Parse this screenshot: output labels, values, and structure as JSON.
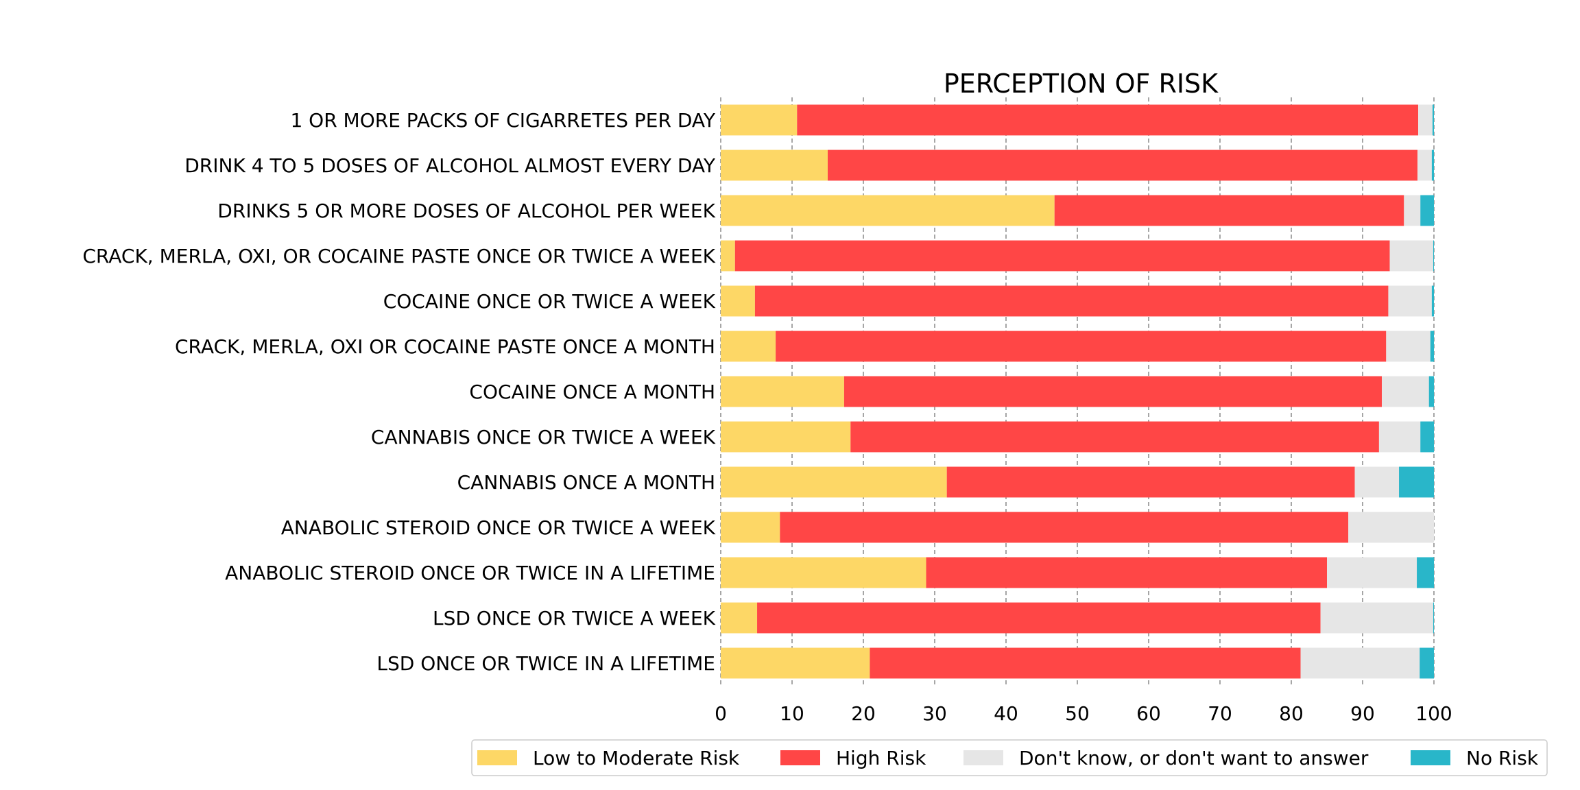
{
  "chart_data": {
    "type": "bar",
    "orientation": "horizontal",
    "stacked": true,
    "title": "PERCEPTION OF RISK",
    "xlabel": "",
    "ylabel": "",
    "xlim": [
      0,
      100
    ],
    "xticks": [
      0,
      10,
      20,
      30,
      40,
      50,
      60,
      70,
      80,
      90,
      100
    ],
    "grid": "vertical dashed",
    "legend_position": "bottom",
    "categories": [
      "1 OR MORE PACKS OF CIGARRETES PER DAY",
      "DRINK 4 TO 5 DOSES OF ALCOHOL ALMOST EVERY DAY",
      "DRINKS 5 OR MORE DOSES OF ALCOHOL PER WEEK",
      "CRACK, MERLA, OXI, OR COCAINE PASTE ONCE OR TWICE A WEEK",
      "COCAINE ONCE OR TWICE A WEEK",
      "CRACK, MERLA, OXI OR COCAINE PASTE ONCE A MONTH",
      "COCAINE ONCE A MONTH",
      "CANNABIS ONCE OR TWICE A WEEK",
      "CANNABIS ONCE A MONTH",
      "ANABOLIC STEROID ONCE OR TWICE A WEEK",
      "ANABOLIC STEROID ONCE OR TWICE IN A LIFETIME",
      "LSD ONCE OR TWICE A WEEK",
      "LSD ONCE OR TWICE IN A LIFETIME"
    ],
    "series": [
      {
        "name": "Low to Moderate Risk",
        "color": "#FDD766",
        "values": [
          10.7,
          15.0,
          46.8,
          2.0,
          4.8,
          7.7,
          17.3,
          18.2,
          31.7,
          8.3,
          28.8,
          5.1,
          20.9
        ]
      },
      {
        "name": "High Risk",
        "color": "#FF4646",
        "values": [
          87.1,
          82.7,
          49.0,
          91.8,
          88.8,
          85.6,
          75.4,
          74.1,
          57.2,
          79.7,
          56.2,
          79.0,
          60.4
        ]
      },
      {
        "name": "Don't know, or don't want to answer",
        "color": "#E6E6E6",
        "values": [
          2.0,
          2.0,
          2.3,
          6.1,
          6.1,
          6.2,
          6.6,
          5.8,
          6.2,
          12.0,
          12.6,
          15.8,
          16.7
        ]
      },
      {
        "name": "No Risk",
        "color": "#29B6C9",
        "values": [
          0.2,
          0.3,
          1.9,
          0.1,
          0.3,
          0.5,
          0.7,
          1.9,
          4.9,
          0.0,
          2.4,
          0.1,
          2.0
        ]
      }
    ]
  }
}
